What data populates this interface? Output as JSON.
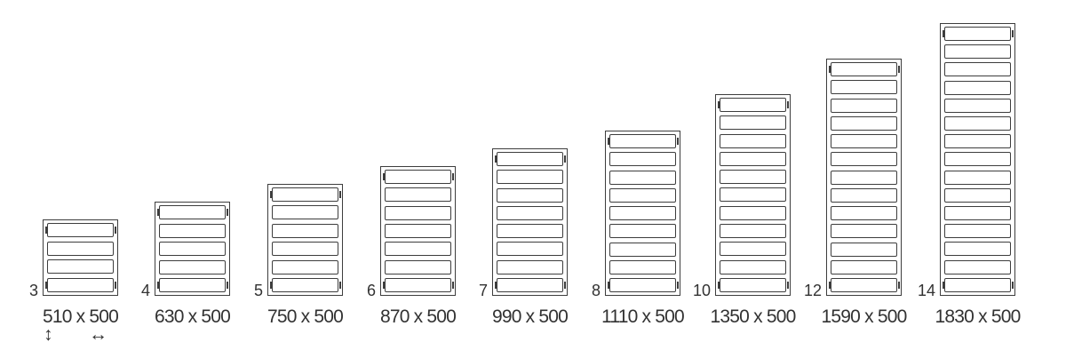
{
  "figure": {
    "stroke_color": "#3d3d3d",
    "text_color": "#323232",
    "legend": {
      "height_arrow_icon": "↕",
      "width_arrow_icon": "↔"
    },
    "radiators": [
      {
        "label": "3",
        "bars": 4,
        "height_mm": 510,
        "width_mm": 500,
        "size_text": "510 x 500"
      },
      {
        "label": "4",
        "bars": 5,
        "height_mm": 630,
        "width_mm": 500,
        "size_text": "630 x 500"
      },
      {
        "label": "5",
        "bars": 6,
        "height_mm": 750,
        "width_mm": 500,
        "size_text": "750 x 500"
      },
      {
        "label": "6",
        "bars": 7,
        "height_mm": 870,
        "width_mm": 500,
        "size_text": "870 x 500"
      },
      {
        "label": "7",
        "bars": 8,
        "height_mm": 990,
        "width_mm": 500,
        "size_text": "990 x 500"
      },
      {
        "label": "8",
        "bars": 9,
        "height_mm": 1110,
        "width_mm": 500,
        "size_text": "1110 x 500"
      },
      {
        "label": "10",
        "bars": 11,
        "height_mm": 1350,
        "width_mm": 500,
        "size_text": "1350 x 500"
      },
      {
        "label": "12",
        "bars": 13,
        "height_mm": 1590,
        "width_mm": 500,
        "size_text": "1590 x 500"
      },
      {
        "label": "14",
        "bars": 15,
        "height_mm": 1830,
        "width_mm": 500,
        "size_text": "1830 x 500"
      }
    ]
  }
}
